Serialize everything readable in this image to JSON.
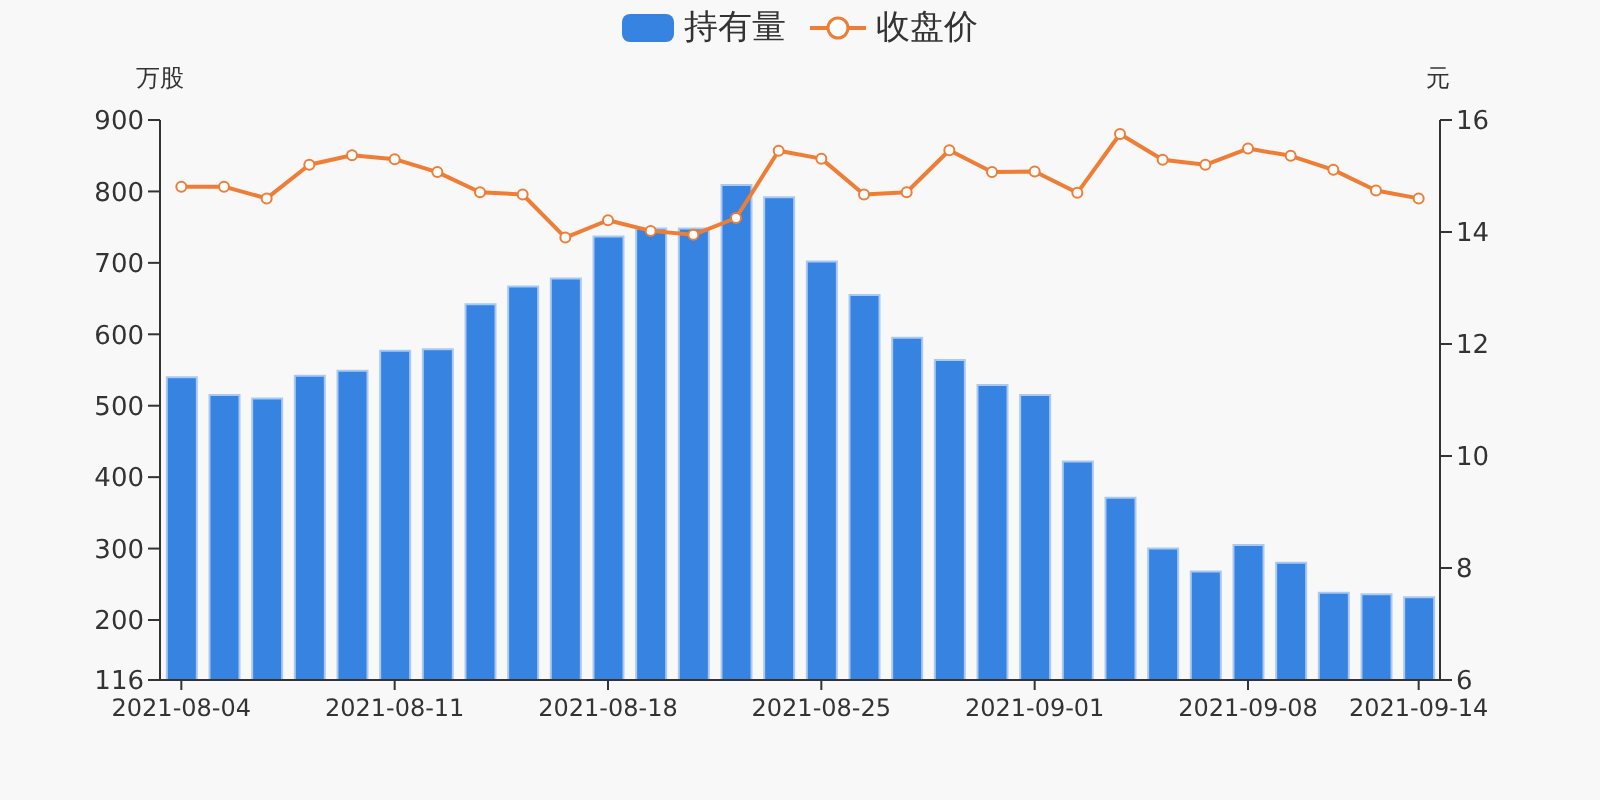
{
  "chart_data": {
    "type": "bar",
    "categories": [
      "2021-08-04",
      null,
      null,
      null,
      null,
      "2021-08-11",
      null,
      null,
      null,
      null,
      "2021-08-18",
      null,
      null,
      null,
      null,
      "2021-08-25",
      null,
      null,
      null,
      null,
      "2021-09-01",
      null,
      null,
      null,
      null,
      "2021-09-08",
      null,
      null,
      null,
      "2021-09-14"
    ],
    "series": [
      {
        "name": "持有量",
        "color": "#3683e2",
        "values": [
          540,
          515,
          510,
          542,
          549,
          577,
          579,
          642,
          667,
          678,
          737,
          748,
          748,
          809,
          792,
          702,
          655,
          595,
          564,
          529,
          515,
          422,
          371,
          300,
          268,
          305,
          280,
          238,
          236,
          232
        ]
      },
      {
        "name": "收盘价",
        "type": "line",
        "axis": "y2",
        "color": "#ee7d36",
        "marker": "circle",
        "values": [
          14.81,
          14.81,
          14.6,
          15.2,
          15.37,
          15.3,
          15.07,
          14.71,
          14.67,
          13.9,
          14.21,
          14.02,
          13.95,
          14.25,
          15.45,
          15.31,
          14.67,
          14.71,
          15.46,
          15.07,
          15.08,
          14.7,
          15.75,
          15.29,
          15.2,
          15.49,
          15.36,
          15.11,
          14.74,
          14.6
        ]
      }
    ],
    "ylabel": "万股",
    "y2label": "元",
    "ylim": [
      116,
      900
    ],
    "yticks": [
      116,
      200,
      300,
      400,
      500,
      600,
      700,
      800,
      900
    ],
    "y2lim": [
      6,
      16
    ],
    "y2ticks": [
      6,
      8,
      10,
      12,
      14,
      16
    ],
    "grid": false,
    "legend": "top"
  }
}
